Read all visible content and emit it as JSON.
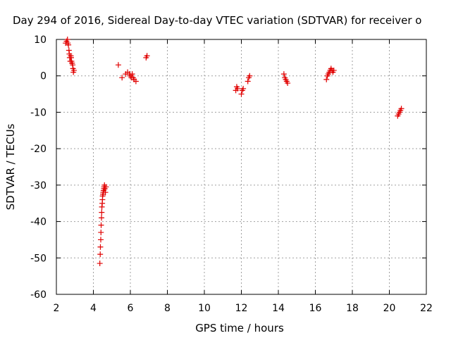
{
  "chart_data": {
    "type": "scatter",
    "title": "Day 294 of 2016, Sidereal Day-to-day VTEC variation (SDTVAR) for receiver o",
    "xlabel": "GPS time / hours",
    "ylabel": "SDTVAR / TECUs",
    "xlim": [
      2,
      22
    ],
    "ylim": [
      -60,
      10
    ],
    "xticks": [
      "2",
      "4",
      "6",
      "8",
      "10",
      "12",
      "14",
      "16",
      "18",
      "20",
      "22"
    ],
    "yticks": [
      "10",
      "0",
      "-10",
      "-20",
      "-30",
      "-40",
      "-50",
      "-60"
    ],
    "grid": true,
    "marker": "plus",
    "color": "#e00000",
    "x": [
      2.5,
      2.55,
      2.6,
      2.62,
      2.65,
      2.68,
      2.7,
      2.72,
      2.75,
      2.78,
      2.8,
      2.82,
      2.85,
      2.88,
      2.9,
      2.92,
      2.95,
      4.35,
      4.37,
      4.38,
      4.4,
      4.41,
      4.42,
      4.44,
      4.45,
      4.46,
      4.48,
      4.49,
      4.5,
      4.52,
      4.53,
      4.55,
      4.57,
      4.58,
      4.6,
      4.62,
      4.65,
      4.68,
      5.35,
      5.55,
      5.75,
      5.85,
      5.95,
      6.0,
      6.05,
      6.1,
      6.15,
      6.2,
      6.3,
      6.85,
      6.9,
      11.7,
      11.75,
      11.8,
      12.0,
      12.05,
      12.1,
      12.35,
      12.4,
      12.45,
      14.3,
      14.35,
      14.4,
      14.45,
      14.5,
      16.6,
      16.65,
      16.7,
      16.75,
      16.8,
      16.85,
      16.9,
      16.95,
      17.0,
      20.45,
      20.5,
      20.55,
      20.6,
      20.65
    ],
    "y": [
      9,
      9.5,
      10,
      9,
      8.5,
      7,
      6,
      5,
      4,
      5.5,
      5,
      4,
      3.5,
      3,
      2,
      1,
      1.5,
      -51.5,
      -49,
      -47,
      -45,
      -43,
      -41,
      -39,
      -37.5,
      -36,
      -35,
      -34,
      -33,
      -32.5,
      -32,
      -31.5,
      -31,
      -30.5,
      -30,
      -31,
      -32,
      -30.5,
      3,
      -0.5,
      0.5,
      1,
      0.5,
      0,
      -0.5,
      0.5,
      -0.5,
      -1,
      -1.5,
      5,
      5.5,
      -4,
      -3,
      -3.5,
      -5,
      -4,
      -3.5,
      -1.5,
      -0.5,
      0,
      0.5,
      -0.5,
      -1,
      -1.5,
      -2,
      -1,
      0,
      0.5,
      1,
      1.5,
      2,
      1.5,
      1,
      1.5,
      -11,
      -10.5,
      -10,
      -9.5,
      -9
    ]
  }
}
